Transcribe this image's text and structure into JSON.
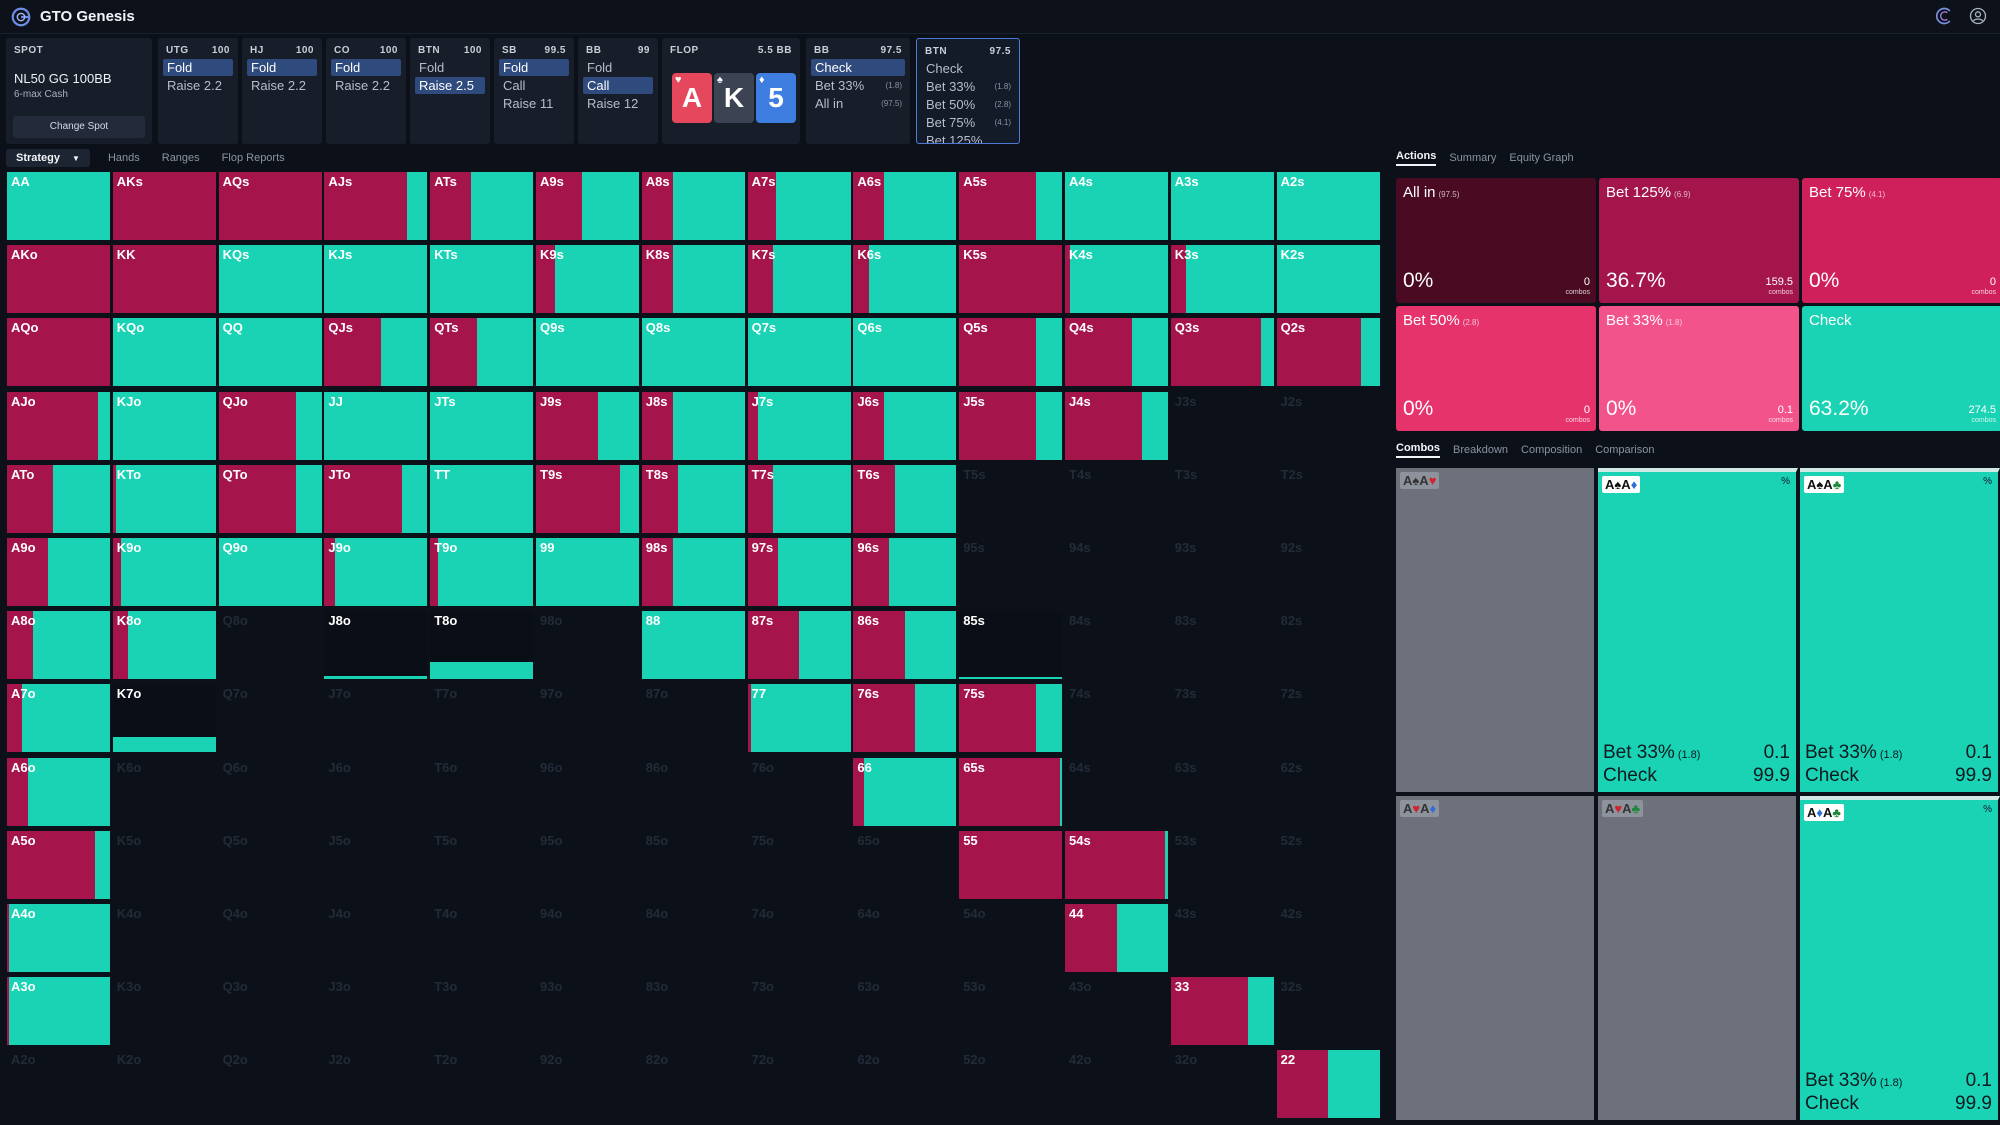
{
  "app": {
    "name": "GTO Genesis"
  },
  "colors": {
    "teal": "#19d3b4",
    "red": "#a5154b",
    "bg": "#0c1119",
    "node": "#171d29",
    "selected": "#2f4a7c"
  },
  "spot": {
    "label": "SPOT",
    "title": "NL50 GG 100BB",
    "sub": "6-max Cash",
    "button": "Change Spot"
  },
  "positions": [
    {
      "pos": "UTG",
      "stack": "100",
      "actions": [
        {
          "label": "Fold",
          "sel": true
        },
        {
          "label": "Raise 2.2",
          "sel": false
        }
      ]
    },
    {
      "pos": "HJ",
      "stack": "100",
      "actions": [
        {
          "label": "Fold",
          "sel": true
        },
        {
          "label": "Raise 2.2",
          "sel": false
        }
      ]
    },
    {
      "pos": "CO",
      "stack": "100",
      "actions": [
        {
          "label": "Fold",
          "sel": true
        },
        {
          "label": "Raise 2.2",
          "sel": false
        }
      ]
    },
    {
      "pos": "BTN",
      "stack": "100",
      "actions": [
        {
          "label": "Fold",
          "sel": false
        },
        {
          "label": "Raise 2.5",
          "sel": true
        }
      ]
    },
    {
      "pos": "SB",
      "stack": "99.5",
      "actions": [
        {
          "label": "Fold",
          "sel": true
        },
        {
          "label": "Call",
          "sel": false
        },
        {
          "label": "Raise 11",
          "sel": false
        }
      ]
    },
    {
      "pos": "BB",
      "stack": "99",
      "actions": [
        {
          "label": "Fold",
          "sel": false
        },
        {
          "label": "Call",
          "sel": true
        },
        {
          "label": "Raise 12",
          "sel": false
        }
      ]
    }
  ],
  "flop": {
    "label": "FLOP",
    "pot": "5.5 BB",
    "cards": [
      {
        "rank": "A",
        "suit": "♥",
        "color": "#e5475c"
      },
      {
        "rank": "K",
        "suit": "♠",
        "color": "#3c4454"
      },
      {
        "rank": "5",
        "suit": "♦",
        "color": "#3d7ee0"
      }
    ]
  },
  "postflop": [
    {
      "pos": "BB",
      "stack": "97.5",
      "active": false,
      "actions": [
        {
          "label": "Check",
          "sel": true,
          "size": ""
        },
        {
          "label": "Bet 33%",
          "sel": false,
          "size": "(1.8)"
        },
        {
          "label": "All in",
          "sel": false,
          "size": "(97.5)"
        }
      ]
    },
    {
      "pos": "BTN",
      "stack": "97.5",
      "active": true,
      "actions": [
        {
          "label": "Check",
          "sel": false,
          "size": ""
        },
        {
          "label": "Bet 33%",
          "sel": false,
          "size": "(1.8)"
        },
        {
          "label": "Bet 50%",
          "sel": false,
          "size": "(2.8)"
        },
        {
          "label": "Bet 75%",
          "sel": false,
          "size": "(4.1)"
        },
        {
          "label": "Bet 125%",
          "sel": false,
          "size": ""
        }
      ]
    }
  ],
  "tabs": [
    {
      "label": "Strategy",
      "sel": true
    },
    {
      "label": "Hands",
      "sel": false
    },
    {
      "label": "Ranges",
      "sel": false
    },
    {
      "label": "Flop Reports",
      "sel": false
    }
  ],
  "ranks": [
    "A",
    "K",
    "Q",
    "J",
    "T",
    "9",
    "8",
    "7",
    "6",
    "5",
    "4",
    "3",
    "2"
  ],
  "grid": {
    "in_range": [
      "1111111111111",
      "1111111111111",
      "1111111111111",
      "1111111111100",
      "1111111110000",
      "1111111110000",
      "1101101111000",
      "1100000111000",
      "1000000011000",
      "1000000001100",
      "1000000000100",
      "1000000000010",
      "0000000000001"
    ],
    "red_pct": [
      [
        0,
        100,
        100,
        80,
        40,
        45,
        30,
        28,
        30,
        75,
        0,
        0,
        0
      ],
      [
        100,
        100,
        0,
        0,
        0,
        18,
        30,
        25,
        15,
        100,
        5,
        15,
        0
      ],
      [
        100,
        0,
        0,
        55,
        45,
        0,
        0,
        0,
        0,
        75,
        65,
        88,
        82
      ],
      [
        88,
        0,
        75,
        0,
        0,
        60,
        30,
        10,
        30,
        75,
        75,
        0,
        0
      ],
      [
        45,
        3,
        75,
        75,
        0,
        82,
        35,
        25,
        40,
        0,
        0,
        0,
        0
      ],
      [
        40,
        8,
        0,
        10,
        8,
        0,
        30,
        30,
        35,
        0,
        0,
        0,
        0
      ],
      [
        25,
        15,
        0,
        0,
        0,
        0,
        0,
        50,
        50,
        0,
        0,
        0,
        0
      ],
      [
        15,
        0,
        0,
        0,
        0,
        0,
        0,
        3,
        60,
        75,
        0,
        0,
        0
      ],
      [
        20,
        0,
        0,
        0,
        0,
        0,
        0,
        0,
        10,
        98,
        0,
        0,
        0
      ],
      [
        85,
        0,
        0,
        0,
        0,
        0,
        0,
        0,
        0,
        100,
        97,
        0,
        0
      ],
      [
        2,
        0,
        0,
        0,
        0,
        0,
        0,
        0,
        0,
        0,
        50,
        0,
        0
      ],
      [
        2,
        0,
        0,
        0,
        0,
        0,
        0,
        0,
        0,
        0,
        0,
        75,
        0
      ],
      [
        0,
        0,
        0,
        0,
        0,
        0,
        0,
        0,
        0,
        0,
        0,
        0,
        50
      ]
    ],
    "partial": {
      "6-3": 4,
      "6-4": 25,
      "7-1": 23,
      "6-9": 3
    }
  },
  "right_tabs": [
    {
      "label": "Actions",
      "sel": true
    },
    {
      "label": "Summary",
      "sel": false
    },
    {
      "label": "Equity Graph",
      "sel": false
    }
  ],
  "actions": [
    {
      "name": "All in",
      "size": "(97.5)",
      "pct": "0%",
      "combos": "0",
      "color": "#4a0a21"
    },
    {
      "name": "Bet 125%",
      "size": "(6.9)",
      "pct": "36.7%",
      "combos": "159.5",
      "color": "#a3154b"
    },
    {
      "name": "Bet 75%",
      "size": "(4.1)",
      "pct": "0%",
      "combos": "0",
      "color": "#cf205b"
    },
    {
      "name": "Bet 50%",
      "size": "(2.8)",
      "pct": "0%",
      "combos": "0",
      "color": "#e6336b"
    },
    {
      "name": "Bet 33%",
      "size": "(1.8)",
      "pct": "0%",
      "combos": "0.1",
      "color": "#f2538a"
    },
    {
      "name": "Check",
      "size": "",
      "pct": "63.2%",
      "combos": "274.5",
      "color": "#19d3b4"
    }
  ],
  "combos_label": "combos",
  "combo_tabs": [
    {
      "label": "Combos",
      "sel": true
    },
    {
      "label": "Breakdown",
      "sel": false
    },
    {
      "label": "Composition",
      "sel": false
    },
    {
      "label": "Comparison",
      "sel": false
    }
  ],
  "combos": [
    {
      "cards": [
        [
          "A",
          "♠",
          "black"
        ],
        [
          "A",
          "♥",
          "red"
        ]
      ],
      "active": false
    },
    {
      "cards": [
        [
          "A",
          "♠",
          "black"
        ],
        [
          "A",
          "♦",
          "blue"
        ]
      ],
      "active": true,
      "pct": "%",
      "bet": "Bet 33%",
      "bet_size": "(1.8)",
      "bet_val": "0.1",
      "check": "Check",
      "check_val": "99.9"
    },
    {
      "cards": [
        [
          "A",
          "♠",
          "black"
        ],
        [
          "A",
          "♣",
          "green"
        ]
      ],
      "active": true,
      "pct": "%",
      "bet": "Bet 33%",
      "bet_size": "(1.8)",
      "bet_val": "0.1",
      "check": "Check",
      "check_val": "99.9"
    },
    {
      "cards": [
        [
          "A",
          "♥",
          "red"
        ],
        [
          "A",
          "♦",
          "blue"
        ]
      ],
      "active": false
    },
    {
      "cards": [
        [
          "A",
          "♥",
          "red"
        ],
        [
          "A",
          "♣",
          "green"
        ]
      ],
      "active": false
    },
    {
      "cards": [
        [
          "A",
          "♦",
          "blue"
        ],
        [
          "A",
          "♣",
          "green"
        ]
      ],
      "active": true,
      "pct": "%",
      "bet": "Bet 33%",
      "bet_size": "(1.8)",
      "bet_val": "0.1",
      "check": "Check",
      "check_val": "99.9"
    }
  ]
}
